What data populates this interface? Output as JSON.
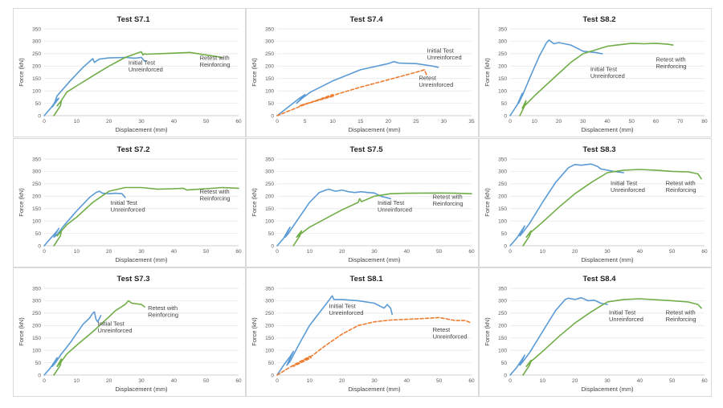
{
  "colors": {
    "initial": "#5b9bd5",
    "retest_reinforced": "#70ad47",
    "retest_unreinforced": "#ed7d31"
  },
  "chart_data": [
    {
      "type": "line",
      "title": "Test S7.1",
      "xlabel": "Displacement (mm)",
      "ylabel": "Force (kN)",
      "xlim": [
        0,
        60
      ],
      "ylim": [
        0,
        350
      ],
      "xticks": [
        0,
        10,
        20,
        30,
        40,
        50,
        60
      ],
      "yticks": [
        0,
        50,
        100,
        150,
        200,
        250,
        300,
        350
      ],
      "grid": true,
      "annotations": [
        {
          "lines": [
            "Initial Test",
            "Unreinforced"
          ],
          "x": 26,
          "y": 205
        },
        {
          "lines": [
            "Retest with",
            "Reinforcing"
          ],
          "x": 48,
          "y": 225
        }
      ],
      "series": [
        {
          "kind": "initial",
          "x": [
            0,
            2,
            4,
            4.5,
            2.5,
            3,
            4,
            8,
            12,
            15,
            15.5,
            17,
            20,
            25,
            28,
            30,
            31,
            31.5
          ],
          "y": [
            0,
            30,
            65,
            70,
            35,
            45,
            80,
            140,
            195,
            230,
            215,
            228,
            233,
            235,
            232,
            235,
            220,
            220
          ]
        },
        {
          "kind": "retest_reinforced",
          "x": [
            3,
            5,
            5.3,
            4,
            5,
            7,
            10,
            15,
            20,
            25,
            30,
            30.5,
            31,
            31.5,
            35,
            40,
            45,
            50,
            55
          ],
          "y": [
            0,
            40,
            60,
            40,
            55,
            95,
            120,
            160,
            200,
            235,
            258,
            245,
            250,
            248,
            250,
            252,
            255,
            245,
            235
          ]
        }
      ]
    },
    {
      "type": "line",
      "title": "Test S7.4",
      "xlabel": "Displacement (mm)",
      "ylabel": "Force (kN)",
      "xlim": [
        0,
        35
      ],
      "ylim": [
        0,
        350
      ],
      "xticks": [
        0,
        5,
        10,
        15,
        20,
        25,
        30,
        35
      ],
      "yticks": [
        0,
        50,
        100,
        150,
        200,
        250,
        300,
        350
      ],
      "grid": true,
      "annotations": [
        {
          "lines": [
            "Initial Test",
            "Unreinforced"
          ],
          "x": 27,
          "y": 255
        },
        {
          "lines": [
            "Retest",
            "Unreinforced"
          ],
          "x": 25.5,
          "y": 145
        }
      ],
      "series": [
        {
          "kind": "initial",
          "x": [
            0,
            2,
            4,
            5,
            3.5,
            4.5,
            6,
            10,
            15,
            20,
            21,
            22,
            25,
            28,
            29
          ],
          "y": [
            0,
            35,
            70,
            85,
            50,
            70,
            95,
            140,
            185,
            210,
            218,
            212,
            210,
            200,
            195
          ]
        },
        {
          "kind": "retest_unreinforced",
          "x": [
            0,
            5,
            10,
            10.3,
            4,
            10.5,
            15,
            20,
            25,
            26.5,
            27
          ],
          "y": [
            0,
            45,
            85,
            80,
            40,
            85,
            115,
            145,
            175,
            185,
            160
          ]
        }
      ]
    },
    {
      "type": "line",
      "title": "Test S8.2",
      "xlabel": "Displacement (mm)",
      "ylabel": "Force (kN)",
      "xlim": [
        0,
        80
      ],
      "ylim": [
        0,
        350
      ],
      "xticks": [
        0,
        10,
        20,
        30,
        40,
        50,
        60,
        70,
        80
      ],
      "yticks": [
        0,
        50,
        100,
        150,
        200,
        250,
        300,
        350
      ],
      "grid": true,
      "annotations": [
        {
          "lines": [
            "Initial Test",
            "Unreinforced"
          ],
          "x": 33,
          "y": 180
        },
        {
          "lines": [
            "Retest with",
            "Reinforcing"
          ],
          "x": 60,
          "y": 218
        }
      ],
      "series": [
        {
          "kind": "initial",
          "x": [
            0,
            3,
            5,
            3.5,
            5,
            8,
            12,
            15,
            16,
            18,
            20,
            25,
            28,
            30,
            35,
            38
          ],
          "y": [
            0,
            45,
            90,
            50,
            80,
            150,
            240,
            295,
            305,
            290,
            295,
            285,
            270,
            260,
            255,
            250
          ]
        },
        {
          "kind": "retest_reinforced",
          "x": [
            4,
            6,
            6.5,
            5,
            7,
            10,
            15,
            20,
            25,
            30,
            40,
            50,
            55,
            60,
            65,
            67
          ],
          "y": [
            0,
            40,
            60,
            30,
            50,
            80,
            125,
            170,
            215,
            250,
            280,
            292,
            290,
            292,
            288,
            285
          ]
        }
      ]
    },
    {
      "type": "line",
      "title": "Test S7.2",
      "xlabel": "Displacement (mm)",
      "ylabel": "Force (kN)",
      "xlim": [
        0,
        60
      ],
      "ylim": [
        0,
        350
      ],
      "xticks": [
        0,
        10,
        20,
        30,
        40,
        50,
        60
      ],
      "yticks": [
        0,
        50,
        100,
        150,
        200,
        250,
        300,
        350
      ],
      "grid": true,
      "annotations": [
        {
          "lines": [
            "Initial Test",
            "Unreinforced"
          ],
          "x": 20.5,
          "y": 165
        },
        {
          "lines": [
            "Retest with",
            "Reinforcing"
          ],
          "x": 48,
          "y": 210
        }
      ],
      "series": [
        {
          "kind": "initial",
          "x": [
            0,
            2,
            4,
            4.5,
            3,
            4,
            6,
            10,
            14,
            16,
            17,
            18,
            20,
            22,
            24,
            25
          ],
          "y": [
            0,
            30,
            60,
            70,
            35,
            45,
            80,
            140,
            195,
            215,
            220,
            212,
            210,
            212,
            210,
            195
          ]
        },
        {
          "kind": "retest_reinforced",
          "x": [
            3,
            5,
            5.3,
            4,
            5,
            7,
            10,
            15,
            20,
            25,
            30,
            35,
            40,
            43,
            44,
            50,
            55,
            60
          ],
          "y": [
            0,
            40,
            60,
            40,
            55,
            85,
            115,
            175,
            220,
            235,
            235,
            228,
            230,
            232,
            225,
            230,
            235,
            232
          ]
        }
      ]
    },
    {
      "type": "line",
      "title": "Test S7.5",
      "xlabel": "Displacement (mm)",
      "ylabel": "Force (kN)",
      "xlim": [
        0,
        60
      ],
      "ylim": [
        0,
        350
      ],
      "xticks": [
        0,
        10,
        20,
        30,
        40,
        50,
        60
      ],
      "yticks": [
        0,
        50,
        100,
        150,
        200,
        250,
        300,
        350
      ],
      "grid": true,
      "annotations": [
        {
          "lines": [
            "Initial Test",
            "Unreinforced"
          ],
          "x": 31,
          "y": 165
        },
        {
          "lines": [
            "Retest with",
            "Reinforcing"
          ],
          "x": 48,
          "y": 190
        }
      ],
      "series": [
        {
          "kind": "initial",
          "x": [
            0,
            2,
            3.5,
            4,
            2.5,
            3.5,
            5,
            10,
            13,
            15,
            16,
            18,
            20,
            22,
            24,
            26,
            28,
            30,
            32,
            35
          ],
          "y": [
            0,
            30,
            65,
            75,
            35,
            50,
            80,
            175,
            215,
            225,
            228,
            220,
            225,
            218,
            215,
            218,
            215,
            213,
            200,
            190
          ]
        },
        {
          "kind": "retest_reinforced",
          "x": [
            5,
            7,
            7.5,
            6,
            7,
            10,
            15,
            20,
            25,
            25.5,
            26,
            30,
            35,
            40,
            50,
            55,
            60
          ],
          "y": [
            0,
            40,
            60,
            35,
            45,
            75,
            110,
            145,
            175,
            190,
            178,
            200,
            210,
            212,
            213,
            212,
            210
          ]
        }
      ]
    },
    {
      "type": "line",
      "title": "Test S8.3",
      "xlabel": "Displacement (mm)",
      "ylabel": "Force (kN)",
      "xlim": [
        0,
        60
      ],
      "ylim": [
        0,
        350
      ],
      "xticks": [
        0,
        10,
        20,
        30,
        40,
        50,
        60
      ],
      "yticks": [
        0,
        50,
        100,
        150,
        200,
        250,
        300,
        350
      ],
      "grid": true,
      "annotations": [
        {
          "lines": [
            "Initial Test",
            "Unreinforced"
          ],
          "x": 31,
          "y": 245
        },
        {
          "lines": [
            "Retest with",
            "Reinforcing"
          ],
          "x": 48,
          "y": 245
        }
      ],
      "series": [
        {
          "kind": "initial",
          "x": [
            0,
            2,
            4,
            4.5,
            3,
            4,
            6,
            10,
            14,
            18,
            20,
            22,
            25,
            27,
            28,
            30,
            32,
            35
          ],
          "y": [
            0,
            30,
            70,
            80,
            40,
            55,
            90,
            175,
            255,
            315,
            328,
            325,
            330,
            320,
            310,
            305,
            300,
            295
          ]
        },
        {
          "kind": "retest_reinforced",
          "x": [
            4,
            6,
            6.5,
            5,
            6,
            10,
            15,
            20,
            25,
            30,
            35,
            40,
            45,
            50,
            55,
            58,
            59
          ],
          "y": [
            0,
            40,
            60,
            35,
            50,
            95,
            155,
            210,
            255,
            295,
            305,
            308,
            305,
            300,
            298,
            290,
            270
          ]
        }
      ]
    },
    {
      "type": "line",
      "title": "Test S7.3",
      "xlabel": "Displacement (mm)",
      "ylabel": "Force (kN)",
      "xlim": [
        0,
        60
      ],
      "ylim": [
        0,
        350
      ],
      "xticks": [
        0,
        10,
        20,
        30,
        40,
        50,
        60
      ],
      "yticks": [
        0,
        50,
        100,
        150,
        200,
        250,
        300,
        350
      ],
      "grid": true,
      "annotations": [
        {
          "lines": [
            "Initial Test",
            "Unreinforced"
          ],
          "x": 16.5,
          "y": 200
        },
        {
          "lines": [
            "Retest with",
            "Reinforcing"
          ],
          "x": 32,
          "y": 262
        }
      ],
      "series": [
        {
          "kind": "initial",
          "x": [
            0,
            2,
            3.5,
            4,
            2.5,
            3.5,
            5,
            8,
            12,
            14,
            15,
            15.5,
            16,
            16.5,
            17.5
          ],
          "y": [
            0,
            30,
            60,
            70,
            35,
            50,
            80,
            130,
            205,
            230,
            250,
            255,
            225,
            215,
            240
          ]
        },
        {
          "kind": "retest_reinforced",
          "x": [
            3,
            5,
            5.3,
            4,
            5,
            7,
            10,
            15,
            20,
            22,
            25,
            26,
            27,
            30,
            31
          ],
          "y": [
            0,
            40,
            65,
            35,
            50,
            85,
            120,
            175,
            235,
            260,
            285,
            300,
            290,
            285,
            275
          ]
        }
      ]
    },
    {
      "type": "line",
      "title": "Test S8.1",
      "xlabel": "Displacement (mm)",
      "ylabel": "Force (kN)",
      "xlim": [
        0,
        60
      ],
      "ylim": [
        0,
        350
      ],
      "xticks": [
        0,
        10,
        20,
        30,
        40,
        50,
        60
      ],
      "yticks": [
        0,
        50,
        100,
        150,
        200,
        250,
        300,
        350
      ],
      "grid": true,
      "annotations": [
        {
          "lines": [
            "Initial Test",
            "Unreinforced"
          ],
          "x": 16,
          "y": 270
        },
        {
          "lines": [
            "Retest",
            "Unreinforced"
          ],
          "x": 48,
          "y": 175
        }
      ],
      "series": [
        {
          "kind": "initial",
          "x": [
            0,
            2,
            4,
            5,
            3,
            4,
            7,
            10,
            15,
            17,
            17.5,
            20,
            25,
            30,
            33,
            34,
            35,
            35.5
          ],
          "y": [
            0,
            40,
            75,
            95,
            40,
            55,
            130,
            200,
            285,
            320,
            305,
            305,
            300,
            290,
            270,
            285,
            270,
            245
          ]
        },
        {
          "kind": "retest_unreinforced",
          "x": [
            0,
            5,
            10,
            10.5,
            5,
            11,
            15,
            20,
            25,
            30,
            35,
            40,
            45,
            50,
            55,
            58,
            60
          ],
          "y": [
            0,
            40,
            75,
            70,
            35,
            80,
            120,
            165,
            200,
            215,
            222,
            225,
            228,
            232,
            220,
            220,
            210
          ]
        }
      ]
    },
    {
      "type": "line",
      "title": "Test S8.4",
      "xlabel": "Displacement (mm)",
      "ylabel": "Force (kN)",
      "xlim": [
        0,
        60
      ],
      "ylim": [
        0,
        350
      ],
      "xticks": [
        0,
        10,
        20,
        30,
        40,
        50,
        60
      ],
      "yticks": [
        0,
        50,
        100,
        150,
        200,
        250,
        300,
        350
      ],
      "grid": true,
      "annotations": [
        {
          "lines": [
            "Initial Test",
            "Unreinforced"
          ],
          "x": 30.5,
          "y": 245
        },
        {
          "lines": [
            "Retest with",
            "Reinforcing"
          ],
          "x": 48,
          "y": 245
        }
      ],
      "series": [
        {
          "kind": "initial",
          "x": [
            0,
            2,
            4,
            4.5,
            3,
            4,
            6,
            10,
            14,
            17,
            18,
            20,
            22,
            24,
            26,
            28,
            30
          ],
          "y": [
            0,
            30,
            70,
            80,
            40,
            55,
            90,
            175,
            260,
            305,
            310,
            305,
            312,
            300,
            302,
            290,
            285
          ]
        },
        {
          "kind": "retest_reinforced",
          "x": [
            4,
            6,
            6.5,
            5,
            6,
            10,
            15,
            20,
            25,
            30,
            35,
            40,
            50,
            55,
            58,
            59
          ],
          "y": [
            0,
            40,
            60,
            35,
            50,
            95,
            155,
            210,
            255,
            295,
            305,
            308,
            300,
            295,
            285,
            270
          ]
        }
      ]
    }
  ]
}
